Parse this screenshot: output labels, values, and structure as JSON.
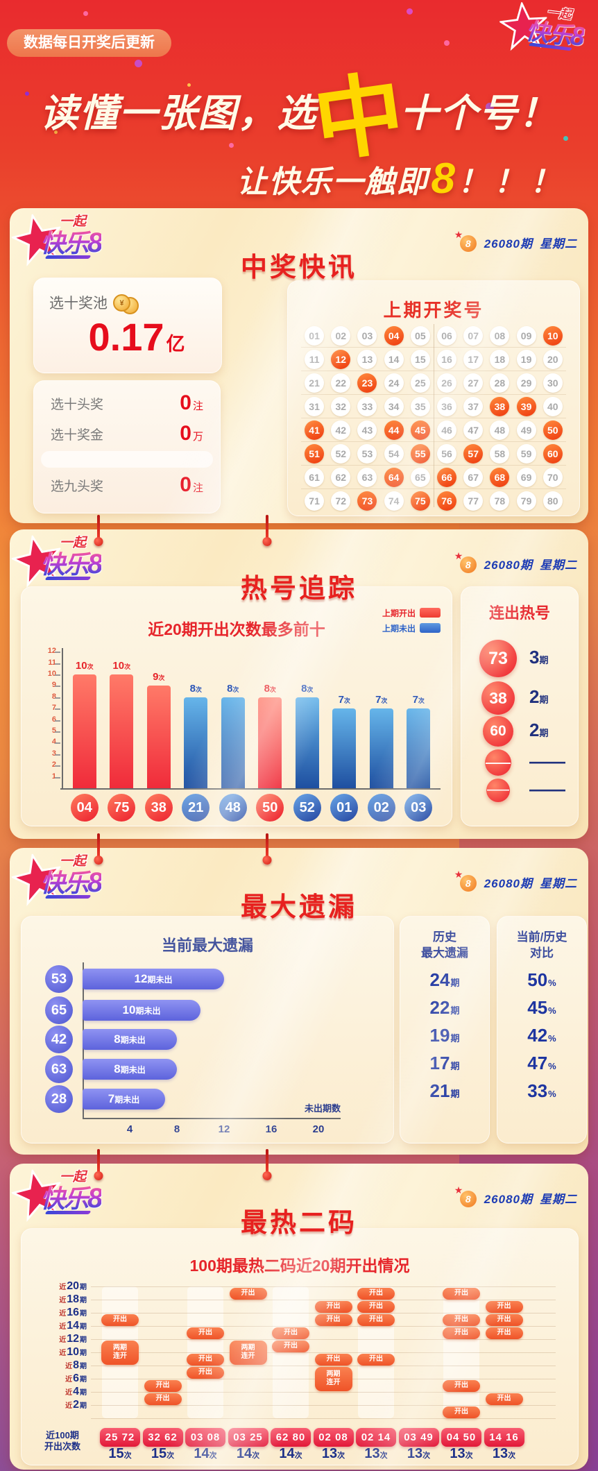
{
  "page": {
    "notice": "数据每日开奖后更新",
    "headline": {
      "pre": "读懂一张图，选",
      "zhong": "中",
      "post": "十个号！"
    },
    "subline": {
      "pre": "让快乐一触即",
      "eight": "8",
      "post": "！！！"
    }
  },
  "logo": {
    "top": "一起",
    "main": "快乐",
    "eight": "8"
  },
  "period": {
    "issue": "26080期",
    "weekday": "星期二"
  },
  "colors": {
    "hot_red": "#ee3b30",
    "cold_blue": "#2e63c8",
    "accent_red": "#e7211f",
    "navy": "#1c2f88",
    "gold": "#ffd600"
  },
  "s1": {
    "title": "中奖快讯",
    "pool_label": "选十奖池",
    "coin_symbol": "¥",
    "pool_value": "0.17",
    "pool_unit": "亿",
    "stats": [
      {
        "label": "选十头奖",
        "value": "0",
        "unit": "注"
      },
      {
        "label": "选十奖金",
        "value": "0",
        "unit": "万"
      },
      {
        "label": "选九头奖",
        "value": "0",
        "unit": "注"
      }
    ],
    "draw": {
      "title": "上期开奖号",
      "total": 80,
      "drawn": [
        4,
        10,
        12,
        23,
        38,
        39,
        41,
        44,
        45,
        50,
        51,
        55,
        57,
        60,
        64,
        66,
        68,
        73,
        75,
        76
      ]
    }
  },
  "s2": {
    "title": "热号追踪",
    "chart_title": "近20期开出次数最多前十",
    "legend": [
      {
        "label": "上期开出",
        "color": "#ee3b30"
      },
      {
        "label": "上期未出",
        "color": "#2e63c8"
      }
    ],
    "unit": "次",
    "y_ticks": [
      1,
      2,
      3,
      4,
      5,
      6,
      7,
      8,
      9,
      10,
      11,
      12
    ],
    "bars": [
      {
        "num": "04",
        "count": 10,
        "hot": true
      },
      {
        "num": "75",
        "count": 10,
        "hot": true
      },
      {
        "num": "38",
        "count": 9,
        "hot": true
      },
      {
        "num": "21",
        "count": 8,
        "hot": false
      },
      {
        "num": "48",
        "count": 8,
        "hot": false
      },
      {
        "num": "50",
        "count": 8,
        "hot": true
      },
      {
        "num": "52",
        "count": 8,
        "hot": false
      },
      {
        "num": "01",
        "count": 7,
        "hot": false
      },
      {
        "num": "02",
        "count": 7,
        "hot": false
      },
      {
        "num": "03",
        "count": 7,
        "hot": false
      }
    ],
    "streak": {
      "title": "连出热号",
      "items": [
        {
          "num": "73",
          "periods": "3",
          "unit": "期"
        },
        {
          "num": "38",
          "periods": "2",
          "unit": "期"
        },
        {
          "num": "60",
          "periods": "2",
          "unit": "期"
        },
        {
          "num": "——",
          "periods": "——",
          "unit": ""
        },
        {
          "num": "——",
          "periods": "——",
          "unit": ""
        }
      ]
    }
  },
  "s3": {
    "title": "最大遗漏",
    "chart_title": "当前最大遗漏",
    "axis_label": "未出期数",
    "x_ticks": [
      "4",
      "8",
      "12",
      "16",
      "20"
    ],
    "rows": [
      {
        "num": "53",
        "miss": 12,
        "bar_num": "12",
        "bar_suffix": "期未出"
      },
      {
        "num": "65",
        "miss": 10,
        "bar_num": "10",
        "bar_suffix": "期未出"
      },
      {
        "num": "42",
        "miss": 8,
        "bar_num": "8",
        "bar_suffix": "期未出"
      },
      {
        "num": "63",
        "miss": 8,
        "bar_num": "8",
        "bar_suffix": "期未出"
      },
      {
        "num": "28",
        "miss": 7,
        "bar_num": "7",
        "bar_suffix": "期未出"
      }
    ],
    "history": {
      "title1": "历史",
      "title2": "最大遗漏",
      "unit": "期",
      "values": [
        "24",
        "22",
        "19",
        "17",
        "21"
      ]
    },
    "ratio": {
      "title1": "当前/历史",
      "title2": "对比",
      "unit": "%",
      "values": [
        "50",
        "45",
        "42",
        "47",
        "33"
      ]
    }
  },
  "s4": {
    "title": "最热二码",
    "chart_title": "100期最热二码近20期开出情况",
    "row_labels": [
      {
        "pre": "近",
        "num": "20",
        "suf": "期"
      },
      {
        "pre": "近",
        "num": "18",
        "suf": "期"
      },
      {
        "pre": "近",
        "num": "16",
        "suf": "期"
      },
      {
        "pre": "近",
        "num": "14",
        "suf": "期"
      },
      {
        "pre": "近",
        "num": "12",
        "suf": "期"
      },
      {
        "pre": "近",
        "num": "10",
        "suf": "期"
      },
      {
        "pre": "近",
        "num": "8",
        "suf": "期"
      },
      {
        "pre": "近",
        "num": "6",
        "suf": "期"
      },
      {
        "pre": "近",
        "num": "4",
        "suf": "期"
      },
      {
        "pre": "近",
        "num": "2",
        "suf": "期"
      }
    ],
    "bottom_label1": "近100期",
    "bottom_label2": "开出次数",
    "pill_open": "开出",
    "pill_double1": "两期",
    "pill_double2": "连开",
    "count_unit": "次",
    "columns": [
      {
        "pair": "25 72",
        "count": "15",
        "open_rows": [
          2
        ],
        "double_rows": [
          4
        ]
      },
      {
        "pair": "32 62",
        "count": "15",
        "open_rows": [
          7,
          8
        ],
        "double_rows": []
      },
      {
        "pair": "03 08",
        "count": "14",
        "open_rows": [
          3,
          5,
          6
        ],
        "double_rows": []
      },
      {
        "pair": "03 25",
        "count": "14",
        "open_rows": [
          0
        ],
        "double_rows": [
          4
        ]
      },
      {
        "pair": "62 80",
        "count": "14",
        "open_rows": [
          3,
          4
        ],
        "double_rows": []
      },
      {
        "pair": "02 08",
        "count": "13",
        "open_rows": [
          1,
          2,
          5
        ],
        "double_rows": [
          6
        ]
      },
      {
        "pair": "02 14",
        "count": "13",
        "open_rows": [
          0,
          1,
          2,
          5
        ],
        "double_rows": []
      },
      {
        "pair": "03 49",
        "count": "13",
        "open_rows": [],
        "double_rows": []
      },
      {
        "pair": "04 50",
        "count": "13",
        "open_rows": [
          0,
          2,
          3,
          7,
          9
        ],
        "double_rows": []
      },
      {
        "pair": "14 16",
        "count": "13",
        "open_rows": [
          1,
          2,
          3,
          8
        ],
        "double_rows": []
      }
    ]
  },
  "chart_data": [
    {
      "type": "table",
      "title": "上期开奖号",
      "rows": 8,
      "cols": 10,
      "numbers": "01-80",
      "highlighted": [
        4,
        10,
        12,
        23,
        38,
        39,
        41,
        44,
        45,
        50,
        51,
        55,
        57,
        60,
        64,
        66,
        68,
        73,
        75,
        76
      ]
    },
    {
      "type": "bar",
      "title": "近20期开出次数最多前十",
      "categories": [
        "04",
        "75",
        "38",
        "21",
        "48",
        "50",
        "52",
        "01",
        "02",
        "03"
      ],
      "values": [
        10,
        10,
        9,
        8,
        8,
        8,
        8,
        7,
        7,
        7
      ],
      "unit": "次",
      "ylim": [
        0,
        12
      ],
      "grid": false,
      "legend_position": "top-right",
      "series": [
        {
          "name": "上期开出",
          "color": "#ee3b30",
          "categories": [
            "04",
            "75",
            "38",
            "50"
          ]
        },
        {
          "name": "上期未出",
          "color": "#2e63c8",
          "categories": [
            "21",
            "48",
            "52",
            "01",
            "02",
            "03"
          ]
        }
      ]
    },
    {
      "type": "bar",
      "orientation": "horizontal",
      "title": "当前最大遗漏",
      "categories": [
        "53",
        "65",
        "42",
        "63",
        "28"
      ],
      "values": [
        12,
        10,
        8,
        8,
        7
      ],
      "bar_labels": [
        "12期未出",
        "10期未出",
        "8期未出",
        "8期未出",
        "7期未出"
      ],
      "xlabel": "未出期数",
      "xlim": [
        0,
        22
      ],
      "x_ticks": [
        4,
        8,
        12,
        16,
        20
      ],
      "extra_columns": {
        "历史最大遗漏": [
          "24期",
          "22期",
          "19期",
          "17期",
          "21期"
        ],
        "当前/历史对比": [
          "50%",
          "45%",
          "42%",
          "47%",
          "33%"
        ]
      }
    },
    {
      "type": "heatmap",
      "title": "100期最热二码近20期开出情况",
      "x_categories": [
        "25 72",
        "32 62",
        "03 08",
        "03 25",
        "62 80",
        "02 08",
        "02 14",
        "03 49",
        "04 50",
        "14 16"
      ],
      "x_counts": [
        "15次",
        "15次",
        "14次",
        "14次",
        "14次",
        "13次",
        "13次",
        "13次",
        "13次",
        "13次"
      ],
      "y_categories": [
        "近20期",
        "近18期",
        "近16期",
        "近14期",
        "近12期",
        "近10期",
        "近8期",
        "近6期",
        "近4期",
        "近2期"
      ],
      "mark_types": [
        "开出",
        "两期连开"
      ],
      "marks": [
        {
          "pair": "25 72",
          "open": [
            "近16期"
          ],
          "double": [
            "近12期-近10期"
          ]
        },
        {
          "pair": "32 62",
          "open": [
            "近6期",
            "近4期"
          ],
          "double": []
        },
        {
          "pair": "03 08",
          "open": [
            "近14期",
            "近10期",
            "近8期"
          ],
          "double": []
        },
        {
          "pair": "03 25",
          "open": [
            "近20期"
          ],
          "double": [
            "近12期-近10期"
          ]
        },
        {
          "pair": "62 80",
          "open": [
            "近14期",
            "近12期"
          ],
          "double": []
        },
        {
          "pair": "02 08",
          "open": [
            "近18期",
            "近16期",
            "近10期"
          ],
          "double": [
            "近8期-近6期"
          ]
        },
        {
          "pair": "02 14",
          "open": [
            "近20期",
            "近18期",
            "近16期",
            "近10期"
          ],
          "double": []
        },
        {
          "pair": "03 49",
          "open": [],
          "double": []
        },
        {
          "pair": "04 50",
          "open": [
            "近20期",
            "近16期",
            "近14期",
            "近6期",
            "近2期"
          ],
          "double": []
        },
        {
          "pair": "14 16",
          "open": [
            "近18期",
            "近16期",
            "近14期",
            "近4期"
          ],
          "double": []
        }
      ]
    }
  ]
}
